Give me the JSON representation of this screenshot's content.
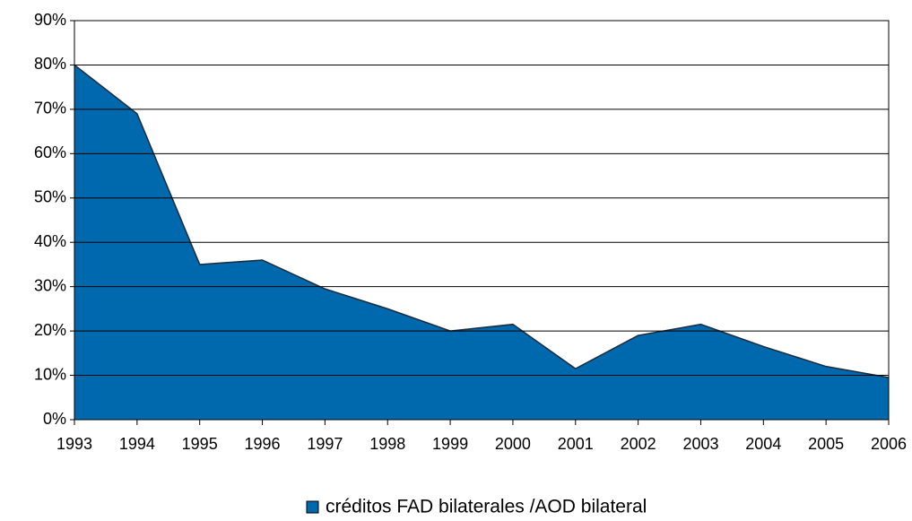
{
  "chart_data": {
    "type": "area",
    "categories": [
      "1993",
      "1994",
      "1995",
      "1996",
      "1997",
      "1998",
      "1999",
      "2000",
      "2001",
      "2002",
      "2003",
      "2004",
      "2005",
      "2006"
    ],
    "series": [
      {
        "name": "créditos FAD bilaterales /AOD bilateral",
        "color": "#0068ac",
        "values": [
          80,
          69,
          35,
          36,
          29.5,
          25,
          20,
          21.5,
          11.5,
          19,
          21.5,
          16.5,
          12,
          9.5
        ]
      }
    ],
    "ylim": [
      0,
      90
    ],
    "yticks": [
      {
        "value": 0,
        "label": "0%"
      },
      {
        "value": 10,
        "label": "10%"
      },
      {
        "value": 20,
        "label": "20%"
      },
      {
        "value": 30,
        "label": "30%"
      },
      {
        "value": 40,
        "label": "40%"
      },
      {
        "value": 50,
        "label": "50%"
      },
      {
        "value": 60,
        "label": "60%"
      },
      {
        "value": 70,
        "label": "70%"
      },
      {
        "value": 80,
        "label": "80%"
      },
      {
        "value": 90,
        "label": "90%"
      }
    ],
    "grid": true,
    "legend": "bottom"
  }
}
